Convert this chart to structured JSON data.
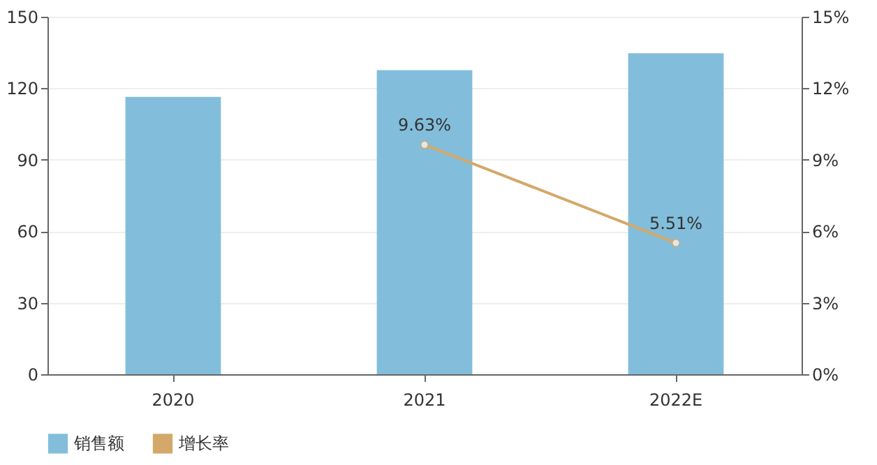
{
  "chart_data": {
    "type": "bar",
    "categories": [
      "2020",
      "2021",
      "2022E"
    ],
    "series": [
      {
        "name": "销售额",
        "color": "#82bedb",
        "values": [
          116.4,
          127.6,
          134.7
        ]
      },
      {
        "name": "增长率",
        "type": "line",
        "axis": "y2",
        "color": "#d4a86a",
        "marker": "circle",
        "values": [
          null,
          9.63,
          5.51
        ],
        "value_labels": [
          null,
          "9.63%",
          "5.51%"
        ]
      }
    ],
    "ylim": [
      0,
      150
    ],
    "yticks": [
      0,
      30,
      60,
      90,
      120,
      150
    ],
    "y2lim": [
      0,
      15
    ],
    "y2ticks": [
      {
        "value": 0,
        "label": "0%"
      },
      {
        "value": 3,
        "label": "3%"
      },
      {
        "value": 6,
        "label": "6%"
      },
      {
        "value": 9,
        "label": "9%"
      },
      {
        "value": 12,
        "label": "12%"
      },
      {
        "value": 15,
        "label": "15%"
      }
    ],
    "grid": "y",
    "legend": "bottom"
  }
}
